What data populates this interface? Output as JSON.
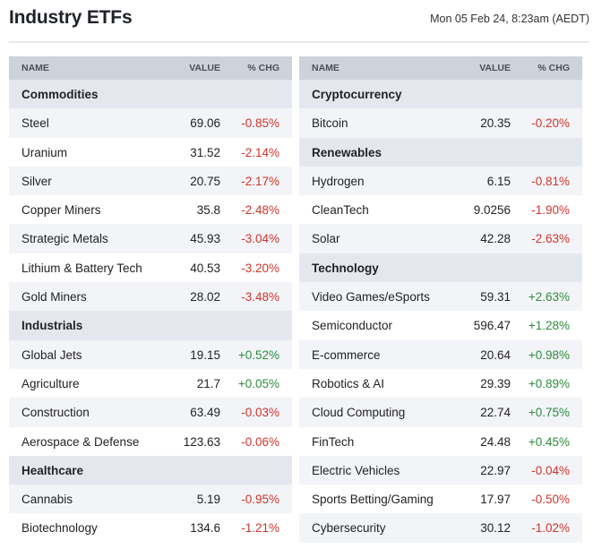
{
  "header": {
    "title": "Industry ETFs",
    "timestamp": "Mon 05 Feb 24, 8:23am (AEDT)"
  },
  "columns": {
    "name": "NAME",
    "value": "VALUE",
    "chg": "% CHG"
  },
  "colors": {
    "negative": "#d0342c",
    "positive": "#2e8b3e",
    "header_bg": "#cdd3db",
    "section_bg": "#e4e8ee"
  },
  "left": [
    {
      "type": "section",
      "name": "Commodities"
    },
    {
      "type": "row",
      "name": "Steel",
      "value": "69.06",
      "chg": "-0.85%",
      "dir": "neg"
    },
    {
      "type": "row",
      "name": "Uranium",
      "value": "31.52",
      "chg": "-2.14%",
      "dir": "neg"
    },
    {
      "type": "row",
      "name": "Silver",
      "value": "20.75",
      "chg": "-2.17%",
      "dir": "neg"
    },
    {
      "type": "row",
      "name": "Copper Miners",
      "value": "35.8",
      "chg": "-2.48%",
      "dir": "neg"
    },
    {
      "type": "row",
      "name": "Strategic Metals",
      "value": "45.93",
      "chg": "-3.04%",
      "dir": "neg"
    },
    {
      "type": "row",
      "name": "Lithium & Battery Tech",
      "value": "40.53",
      "chg": "-3.20%",
      "dir": "neg"
    },
    {
      "type": "row",
      "name": "Gold Miners",
      "value": "28.02",
      "chg": "-3.48%",
      "dir": "neg"
    },
    {
      "type": "section",
      "name": "Industrials"
    },
    {
      "type": "row",
      "name": "Global Jets",
      "value": "19.15",
      "chg": "+0.52%",
      "dir": "pos"
    },
    {
      "type": "row",
      "name": "Agriculture",
      "value": "21.7",
      "chg": "+0.05%",
      "dir": "pos"
    },
    {
      "type": "row",
      "name": "Construction",
      "value": "63.49",
      "chg": "-0.03%",
      "dir": "neg"
    },
    {
      "type": "row",
      "name": "Aerospace & Defense",
      "value": "123.63",
      "chg": "-0.06%",
      "dir": "neg"
    },
    {
      "type": "section",
      "name": "Healthcare"
    },
    {
      "type": "row",
      "name": "Cannabis",
      "value": "5.19",
      "chg": "-0.95%",
      "dir": "neg"
    },
    {
      "type": "row",
      "name": "Biotechnology",
      "value": "134.6",
      "chg": "-1.21%",
      "dir": "neg"
    }
  ],
  "right": [
    {
      "type": "section",
      "name": "Cryptocurrency"
    },
    {
      "type": "row",
      "name": "Bitcoin",
      "value": "20.35",
      "chg": "-0.20%",
      "dir": "neg"
    },
    {
      "type": "section",
      "name": "Renewables"
    },
    {
      "type": "row",
      "name": "Hydrogen",
      "value": "6.15",
      "chg": "-0.81%",
      "dir": "neg"
    },
    {
      "type": "row",
      "name": "CleanTech",
      "value": "9.0256",
      "chg": "-1.90%",
      "dir": "neg"
    },
    {
      "type": "row",
      "name": "Solar",
      "value": "42.28",
      "chg": "-2.63%",
      "dir": "neg"
    },
    {
      "type": "section",
      "name": "Technology"
    },
    {
      "type": "row",
      "name": "Video Games/eSports",
      "value": "59.31",
      "chg": "+2.63%",
      "dir": "pos"
    },
    {
      "type": "row",
      "name": "Semiconductor",
      "value": "596.47",
      "chg": "+1.28%",
      "dir": "pos"
    },
    {
      "type": "row",
      "name": "E-commerce",
      "value": "20.64",
      "chg": "+0.98%",
      "dir": "pos"
    },
    {
      "type": "row",
      "name": "Robotics & AI",
      "value": "29.39",
      "chg": "+0.89%",
      "dir": "pos"
    },
    {
      "type": "row",
      "name": "Cloud Computing",
      "value": "22.74",
      "chg": "+0.75%",
      "dir": "pos"
    },
    {
      "type": "row",
      "name": "FinTech",
      "value": "24.48",
      "chg": "+0.45%",
      "dir": "pos"
    },
    {
      "type": "row",
      "name": "Electric Vehicles",
      "value": "22.97",
      "chg": "-0.04%",
      "dir": "neg"
    },
    {
      "type": "row",
      "name": "Sports Betting/Gaming",
      "value": "17.97",
      "chg": "-0.50%",
      "dir": "neg"
    },
    {
      "type": "row",
      "name": "Cybersecurity",
      "value": "30.12",
      "chg": "-1.02%",
      "dir": "neg"
    }
  ]
}
